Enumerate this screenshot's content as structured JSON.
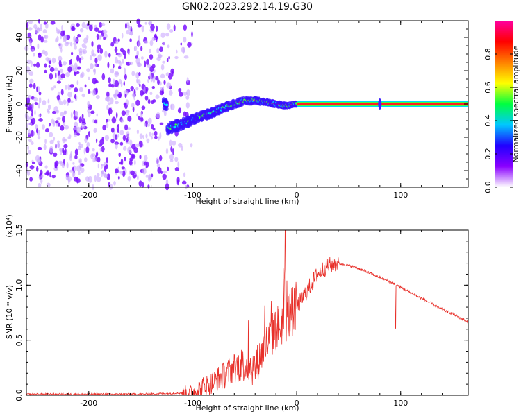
{
  "chart_data": [
    {
      "type": "heatmap",
      "title": "GN02.2023.292.14.19.G30",
      "xlabel": "Height of straight line (km)",
      "ylabel": "Frequency (Hz)",
      "xlim": [
        -260,
        165
      ],
      "ylim": [
        -50,
        50
      ],
      "x_ticks": [
        -200,
        -100,
        0,
        100
      ],
      "y_ticks": [
        -40,
        -20,
        0,
        20,
        40
      ],
      "colorbar": {
        "label": "Normalized spectral amplitude",
        "range": [
          0,
          1
        ],
        "ticks": [
          "0.0",
          "0.2",
          "0.4",
          "0.6",
          "0.8"
        ],
        "colors": [
          "#ffffff",
          "#8a00ff",
          "#2000ff",
          "#00c8ff",
          "#00ff40",
          "#ffff00",
          "#ff8000",
          "#ff0000",
          "#ff00a0"
        ]
      },
      "ridge": {
        "x": [
          -125,
          -110,
          -95,
          -80,
          -65,
          -50,
          -40,
          -30,
          -20,
          -10,
          0,
          50,
          100,
          160
        ],
        "y": [
          -15,
          -12,
          -8,
          -5,
          -1,
          2,
          2,
          1,
          0,
          -1,
          0,
          0,
          0,
          0
        ]
      },
      "noise_region_x": [
        -260,
        -115
      ],
      "tone_x": [
        0,
        165
      ]
    },
    {
      "type": "line",
      "title": "",
      "xlabel": "Height of straight line (km)",
      "ylabel": "SNR (10 * v/v)",
      "scale_label": "(x10⁴)",
      "xlim": [
        -260,
        165
      ],
      "ylim": [
        0,
        1.5
      ],
      "x_ticks": [
        -200,
        -100,
        0,
        100
      ],
      "y_ticks": [
        "0.0",
        "0.5",
        "1.0",
        "1.5"
      ],
      "color": "#e8302a",
      "series": [
        {
          "x": [
            -260,
            -200,
            -150,
            -110,
            -100,
            -90,
            -80,
            -70,
            -60,
            -50,
            -40,
            -30,
            -20,
            -10,
            0,
            10,
            20,
            30,
            40,
            50,
            60,
            70,
            80,
            90,
            95,
            100,
            110,
            120,
            130,
            140,
            150,
            160,
            165
          ],
          "y": [
            0.01,
            0.01,
            0.01,
            0.02,
            0.03,
            0.08,
            0.12,
            0.18,
            0.25,
            0.28,
            0.25,
            0.45,
            0.6,
            0.7,
            0.8,
            0.95,
            1.1,
            1.18,
            1.2,
            1.18,
            1.15,
            1.11,
            1.07,
            1.03,
            1.01,
            0.98,
            0.93,
            0.88,
            0.83,
            0.78,
            0.74,
            0.69,
            0.67
          ]
        }
      ]
    }
  ]
}
